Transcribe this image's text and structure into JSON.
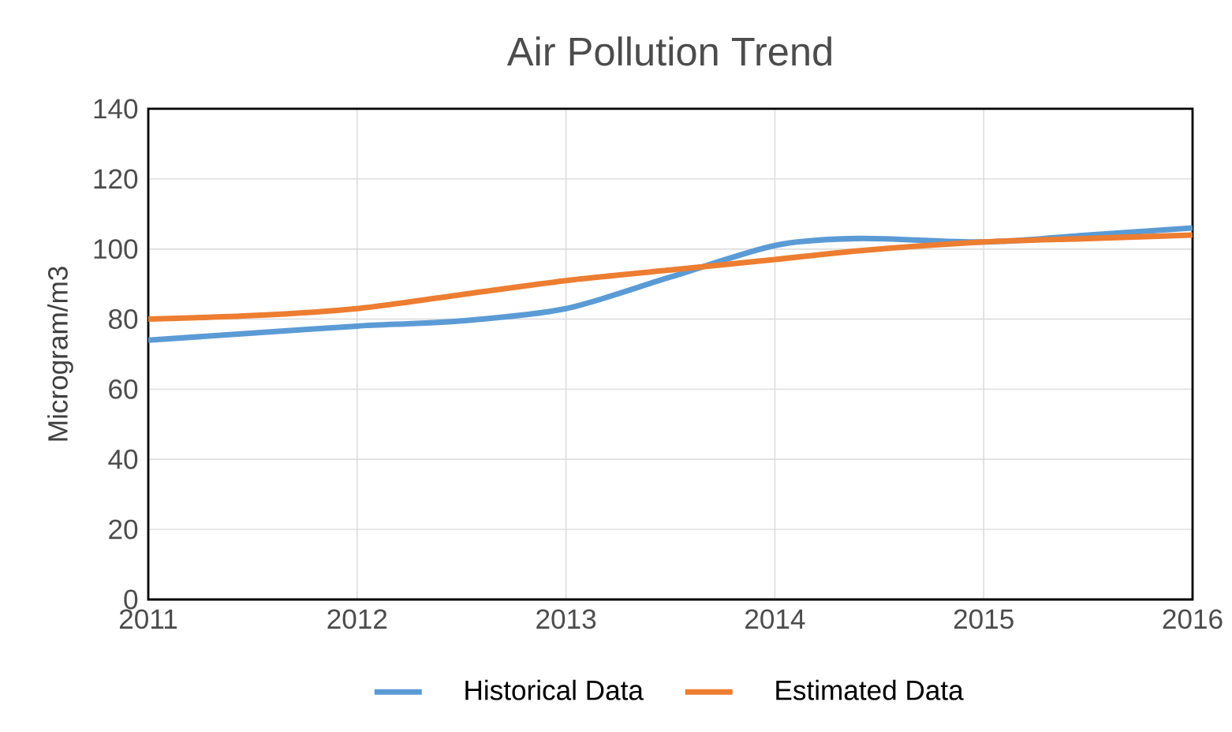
{
  "chart_data": {
    "type": "line",
    "title": "Air Pollution Trend",
    "ylabel": "Microgram/m3",
    "x": [
      2011,
      2011.5,
      2012,
      2012.5,
      2013,
      2013.5,
      2014,
      2014.4,
      2015,
      2015.5,
      2016
    ],
    "series": [
      {
        "name": "Historical Data",
        "color": "#5b9bd5",
        "values": [
          74,
          76,
          78,
          79.5,
          83,
          92,
          101,
          103,
          102,
          104,
          106
        ]
      },
      {
        "name": "Estimated Data",
        "color": "#ed7d31",
        "values": [
          80,
          81,
          83,
          87,
          91,
          94,
          97,
          99.5,
          102,
          103,
          104
        ]
      }
    ],
    "xlim": [
      2011,
      2016
    ],
    "xticks": [
      2011,
      2012,
      2013,
      2014,
      2015,
      2016
    ],
    "ylim": [
      0,
      140
    ],
    "yticks": [
      0,
      20,
      40,
      60,
      80,
      100,
      120,
      140
    ],
    "grid": true,
    "legend": "bottom",
    "marker": "none",
    "line_style": "solid"
  }
}
